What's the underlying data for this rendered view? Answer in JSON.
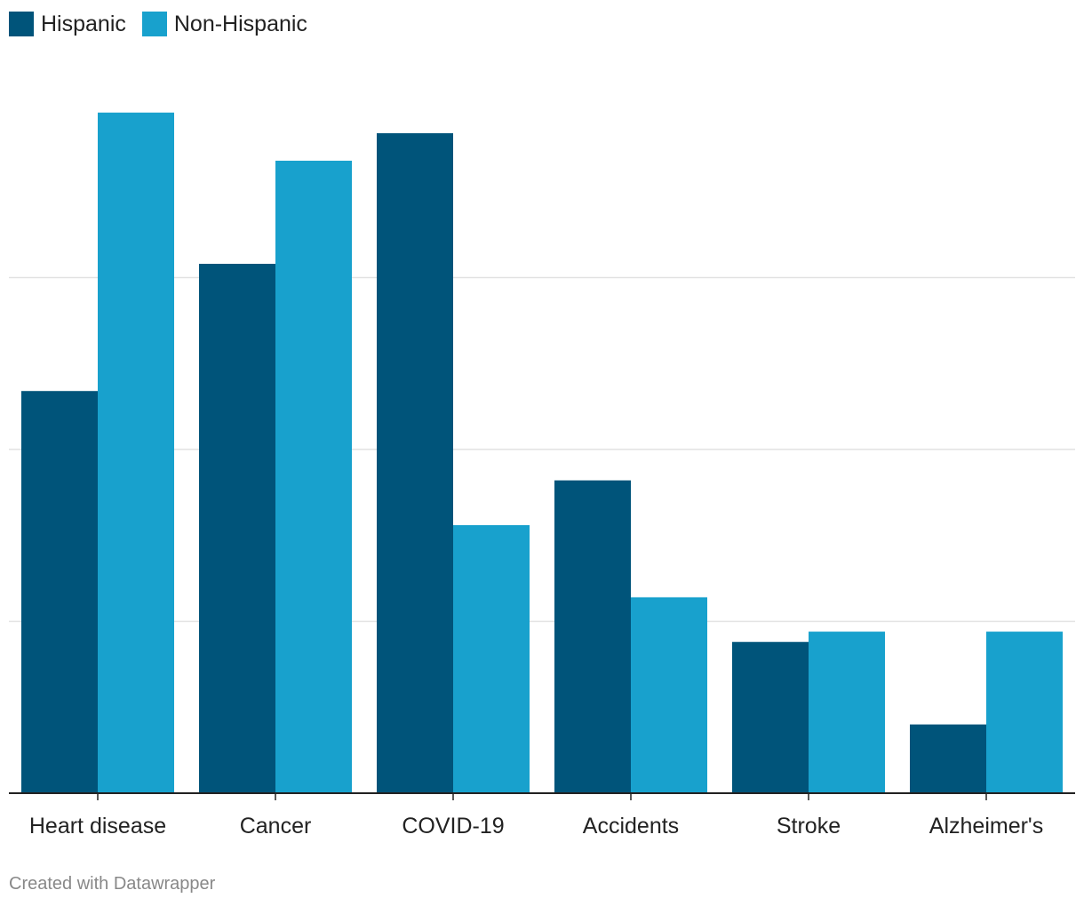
{
  "chart_data": {
    "type": "bar",
    "categories": [
      "Heart disease",
      "Cancer",
      "COVID-19",
      "Accidents",
      "Stroke",
      "Alzheimer's"
    ],
    "series": [
      {
        "name": "Hispanic",
        "color": "#00547a",
        "values": [
          117,
          154,
          192,
          91,
          44,
          20
        ]
      },
      {
        "name": "Non-Hispanic",
        "color": "#18a1cd",
        "values": [
          198,
          184,
          78,
          57,
          47,
          47
        ]
      }
    ],
    "ylim": [
      0,
      200
    ],
    "y_gridlines": [
      50,
      100,
      150
    ],
    "y_tick_labels_shown": false,
    "grid": true,
    "legend": "top-left",
    "title": "",
    "xlabel": "",
    "ylabel": ""
  },
  "footer": {
    "credit": "Created with Datawrapper"
  }
}
